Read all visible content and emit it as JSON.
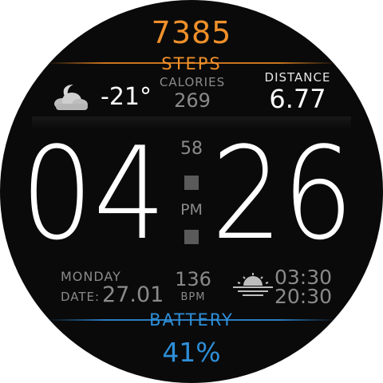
{
  "steps": {
    "value": "7385",
    "label": "STEPS"
  },
  "weather": {
    "icon": "cloud-moon-icon",
    "temperature": "-21°"
  },
  "calories": {
    "label": "CALORIES",
    "value": "269"
  },
  "distance": {
    "label": "DISTANCE",
    "value": "6.77"
  },
  "time": {
    "hours": "04",
    "minutes": "26",
    "seconds": "58",
    "ampm": "PM"
  },
  "date": {
    "day": "MONDAY",
    "label": "DATE:",
    "value": "27.01"
  },
  "heart_rate": {
    "value": "136",
    "unit": "BPM"
  },
  "sun": {
    "icon": "sunrise-sunset-icon",
    "sunrise": "03:30",
    "sunset": "20:30"
  },
  "battery": {
    "label": "BATTERY",
    "value": "41%"
  },
  "colors": {
    "steps_accent": "#f0902a",
    "battery_accent": "#2e8fd8",
    "background": "#0a0a0a",
    "dim_text": "#8a8a8a"
  }
}
